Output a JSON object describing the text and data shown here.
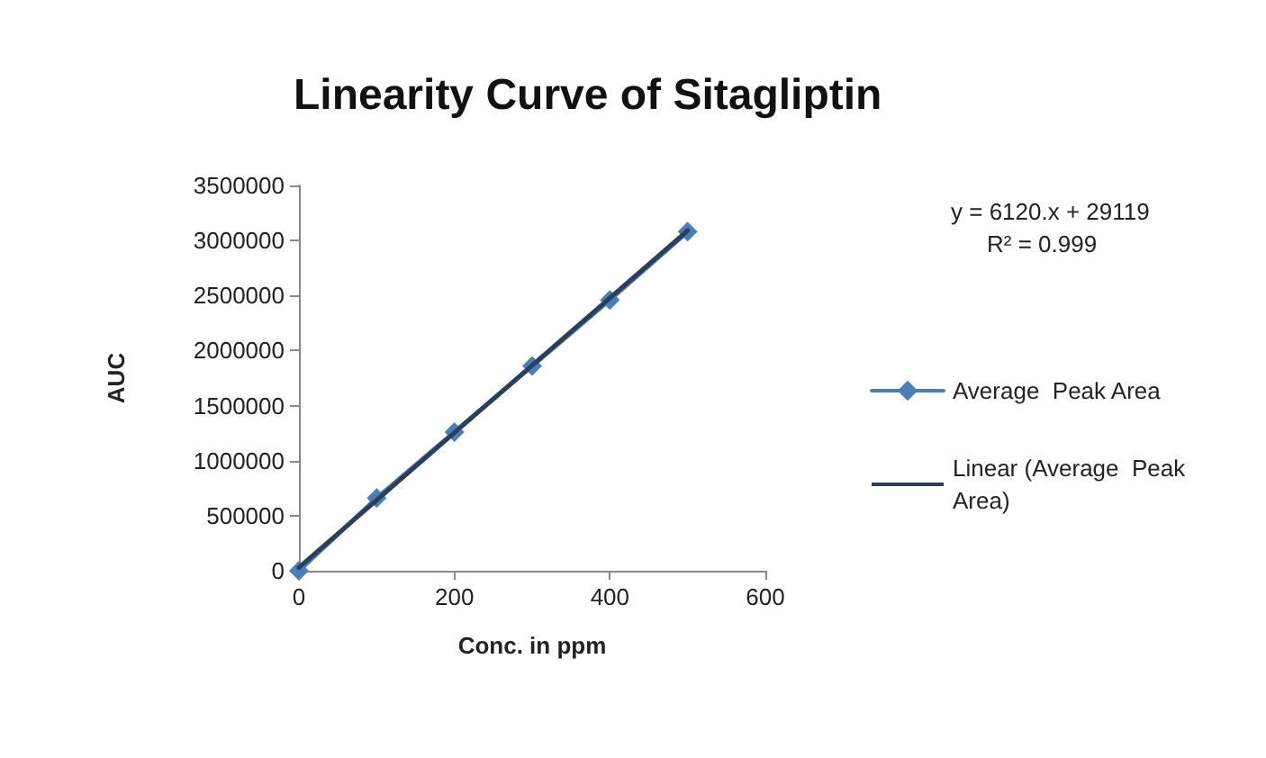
{
  "chart_data": {
    "type": "line",
    "title": "Linearity Curve of Sitagliptin",
    "xlabel": "Conc. in ppm",
    "ylabel": "AUC",
    "x": [
      0,
      100,
      200,
      300,
      400,
      500
    ],
    "series": [
      {
        "name": "Average  Peak Area",
        "color": "#4a7ebb",
        "values": [
          0,
          660000,
          1260000,
          1860000,
          2460000,
          3080000
        ],
        "marker": "diamond"
      },
      {
        "name": "Linear (Average  Peak Area)",
        "color": "#2b3f58",
        "x": [
          0,
          500
        ],
        "values": [
          30000,
          3090000
        ],
        "marker": "none"
      }
    ],
    "xlim": [
      0,
      600
    ],
    "xticks": [
      0,
      200,
      400,
      600
    ],
    "ylim": [
      0,
      3500000
    ],
    "yticks": [
      0,
      500000,
      1000000,
      1500000,
      2000000,
      2500000,
      3000000,
      3500000
    ],
    "grid": false,
    "legend": "right",
    "line_style": "solid",
    "annotations": [
      "y = 6120.x + 29119",
      "R² = 0.999"
    ]
  }
}
